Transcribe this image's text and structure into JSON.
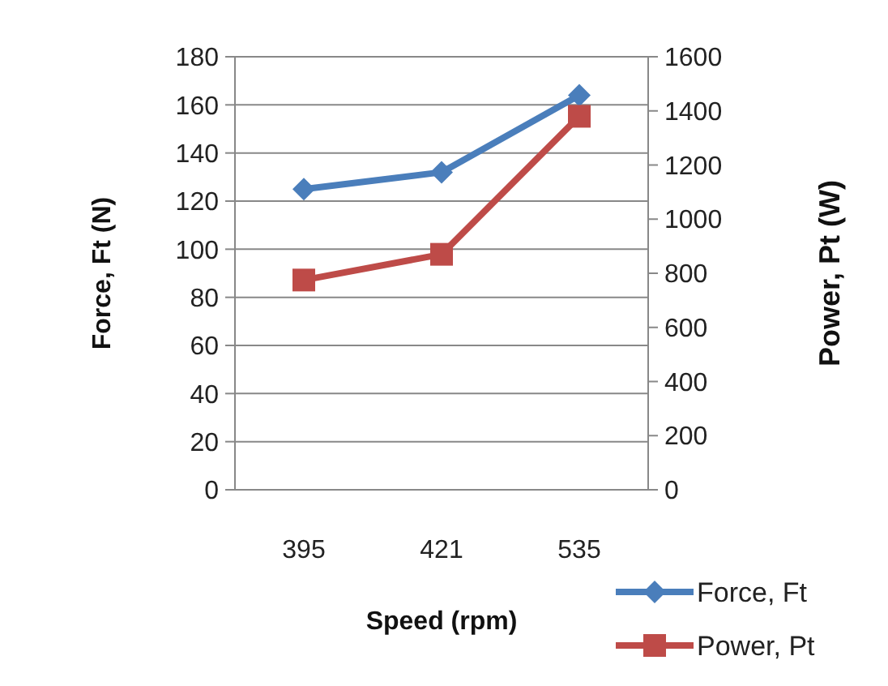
{
  "chart_data": {
    "type": "line",
    "xlabel": "Speed (rpm)",
    "ylabel": "Force, Ft (N)",
    "y2label": "Power, Pt (W)",
    "categories": [
      "395",
      "421",
      "535"
    ],
    "series": [
      {
        "name": "Force, Ft",
        "color": "#4a7ebb",
        "marker": "diamond",
        "values": [
          125,
          132,
          164
        ]
      },
      {
        "name": "Power, Pt",
        "color": "#be4b48",
        "marker": "square",
        "axis": "y2",
        "values": [
          775,
          870,
          1380
        ]
      }
    ],
    "ylim": [
      0,
      180
    ],
    "yticks": [
      0,
      20,
      40,
      60,
      80,
      100,
      120,
      140,
      160,
      180
    ],
    "y2lim": [
      0,
      1600
    ],
    "y2ticks": [
      0,
      200,
      400,
      600,
      800,
      1000,
      1200,
      1400,
      1600
    ],
    "grid": "y",
    "legend": "bottom right"
  }
}
